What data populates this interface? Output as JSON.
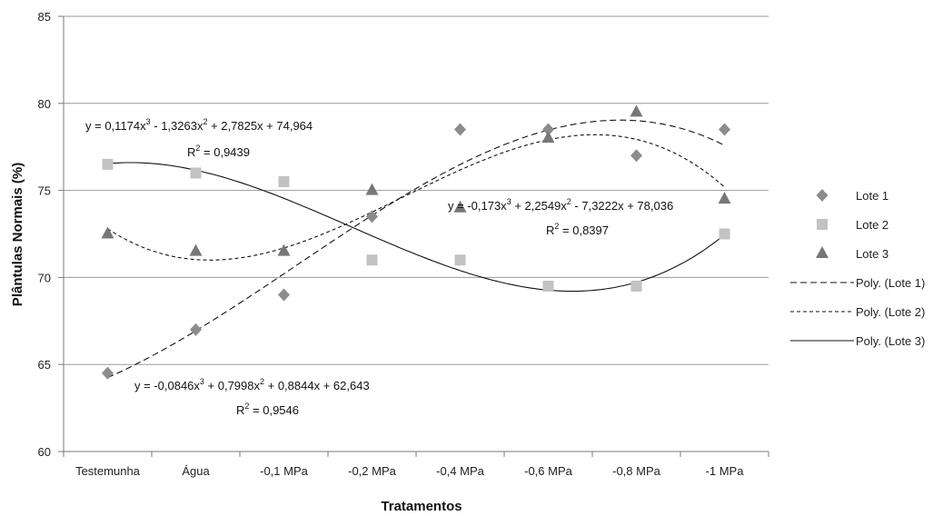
{
  "chart_data": {
    "type": "scatter",
    "xlabel": "Tratamentos",
    "ylabel": "Plântulas Normais (%)",
    "categories": [
      "Testemunha",
      "Água",
      "-0,1 MPa",
      "-0,2 MPa",
      "-0,4 MPa",
      "-0,6 MPa",
      "-0,8 MPa",
      "-1 MPa"
    ],
    "ylim": [
      60,
      85
    ],
    "yticks": [
      "60",
      "65",
      "70",
      "75",
      "80",
      "85"
    ],
    "grid": true,
    "legend_position": "right",
    "series": [
      {
        "name": "Lote 1",
        "marker": "diamond",
        "color": "#8c8c8c",
        "values": [
          64.5,
          67.0,
          69.0,
          73.5,
          78.5,
          78.5,
          77.0,
          78.5
        ],
        "trend_coeffs": [
          62.643,
          0.8844,
          0.7998,
          -0.0846
        ]
      },
      {
        "name": "Lote 2",
        "marker": "square",
        "color": "#c2c2c2",
        "values": [
          76.5,
          76.0,
          75.5,
          71.0,
          71.0,
          69.5,
          69.5,
          72.5
        ],
        "trend_coeffs": [
          78.036,
          -7.3222,
          2.2549,
          -0.173
        ]
      },
      {
        "name": "Lote 3",
        "marker": "triangle",
        "color": "#777777",
        "values": [
          72.5,
          71.5,
          71.5,
          75.0,
          74.0,
          78.0,
          79.5,
          74.5
        ],
        "trend_coeffs": [
          74.964,
          2.7825,
          -1.3263,
          0.1174
        ]
      }
    ],
    "trendlines": [
      {
        "name": "Poly. (Lote 1)",
        "style": "long-dash"
      },
      {
        "name": "Poly. (Lote 2)",
        "style": "short-dash"
      },
      {
        "name": "Poly. (Lote 3)",
        "style": "solid"
      }
    ],
    "annotations": [
      {
        "eq_main": "y = 0,1174x",
        "eq_rest": " - 1,3263x",
        "eq_tail": " + 2,7825x + 74,964",
        "r2": " = 0,9439"
      },
      {
        "eq_main": "y = -0,173x",
        "eq_rest": " + 2,2549x",
        "eq_tail": " - 7,3222x + 78,036",
        "r2": " = 0,8397"
      },
      {
        "eq_main": "y = -0,0846x",
        "eq_rest": " + 0,7998x",
        "eq_tail": " + 0,8844x + 62,643",
        "r2": " = 0,9546"
      }
    ]
  }
}
